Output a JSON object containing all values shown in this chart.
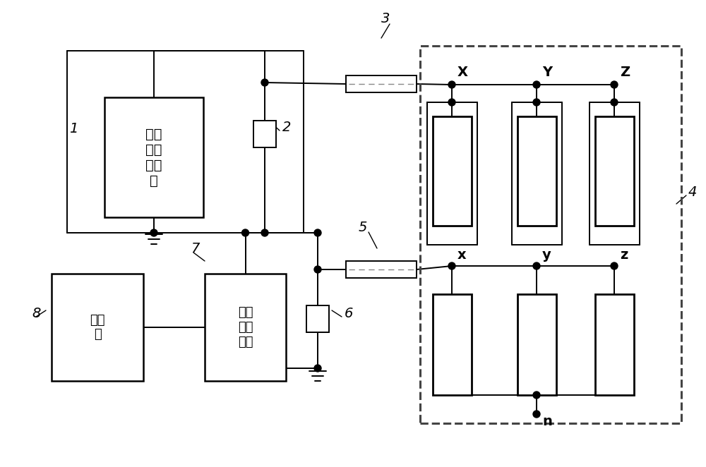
{
  "bg": "#ffffff",
  "lc": "#000000",
  "gray": "#888888",
  "dash_color": "#444444",
  "box1_label": "宽频\n激励\n信号\n源",
  "box7_label": "高精\n度示\n波器",
  "box8_label": "上位\n机",
  "lbl1": "1",
  "lbl2": "2",
  "lbl3": "3",
  "lbl4": "4",
  "lbl5": "5",
  "lbl6": "6",
  "lbl7": "7",
  "lbl8": "8",
  "lblX": "X",
  "lblY": "Y",
  "lblZ": "Z",
  "lblx": "x",
  "lbly": "y",
  "lblz": "z",
  "lbln": "n",
  "fig_w": 10.0,
  "fig_h": 6.62,
  "dpi": 100
}
